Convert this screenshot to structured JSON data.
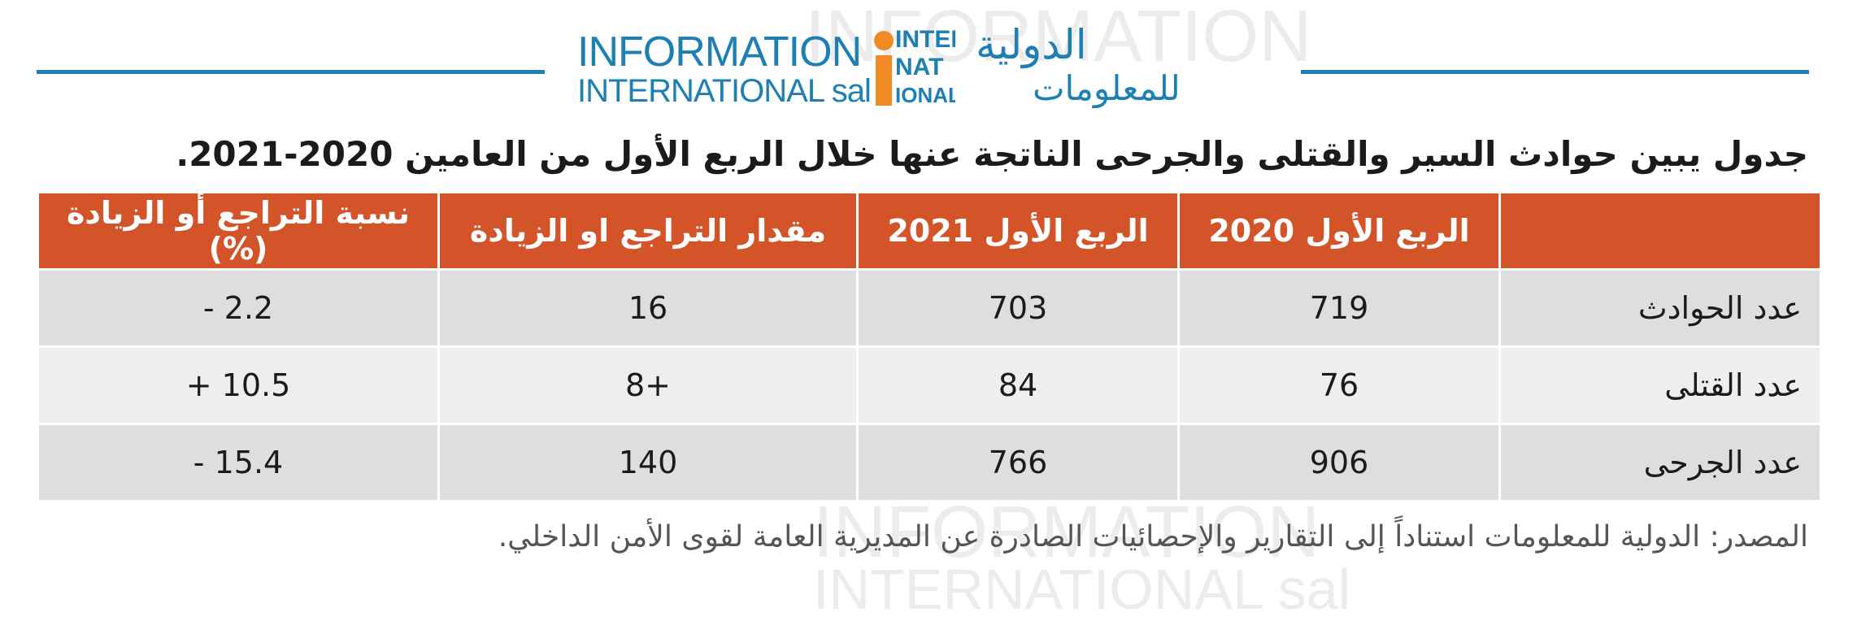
{
  "logo": {
    "en_line1": "INFORMATION",
    "en_line2": "INTERNATIONAL sal",
    "mark_line1": "INTER",
    "mark_line2": "NAT",
    "mark_line3": "IONAL",
    "ar_line1": "الدولية",
    "ar_line2": "للمعلومات"
  },
  "title": "جدول يبين حوادث السير والقتلى والجرحى الناتجة عنها خلال الربع الأول من العامين 2020-2021.",
  "table": {
    "headers": [
      "",
      "الربع الأول 2020",
      "الربع الأول 2021",
      "مقدار التراجع او الزيادة",
      "نسبة التراجع أو الزيادة (%)"
    ],
    "rows": [
      [
        "عدد الحوادث",
        "719",
        "703",
        "16",
        "2.2 -"
      ],
      [
        "عدد القتلى",
        "76",
        "84",
        "+8",
        "10.5 +"
      ],
      [
        "عدد الجرحى",
        "906",
        "766",
        "140",
        "15.4 -"
      ]
    ]
  },
  "source": "المصدر: الدولية للمعلومات استناداً إلى التقارير والإحصائيات الصادرة عن المديرية العامة لقوى الأمن الداخلي.",
  "colors": {
    "header_bg": "#d4542a",
    "brand_blue": "#1e80b4",
    "brand_orange": "#f08a24",
    "row_shade": "#dedede",
    "row_light": "#eeeeee"
  }
}
